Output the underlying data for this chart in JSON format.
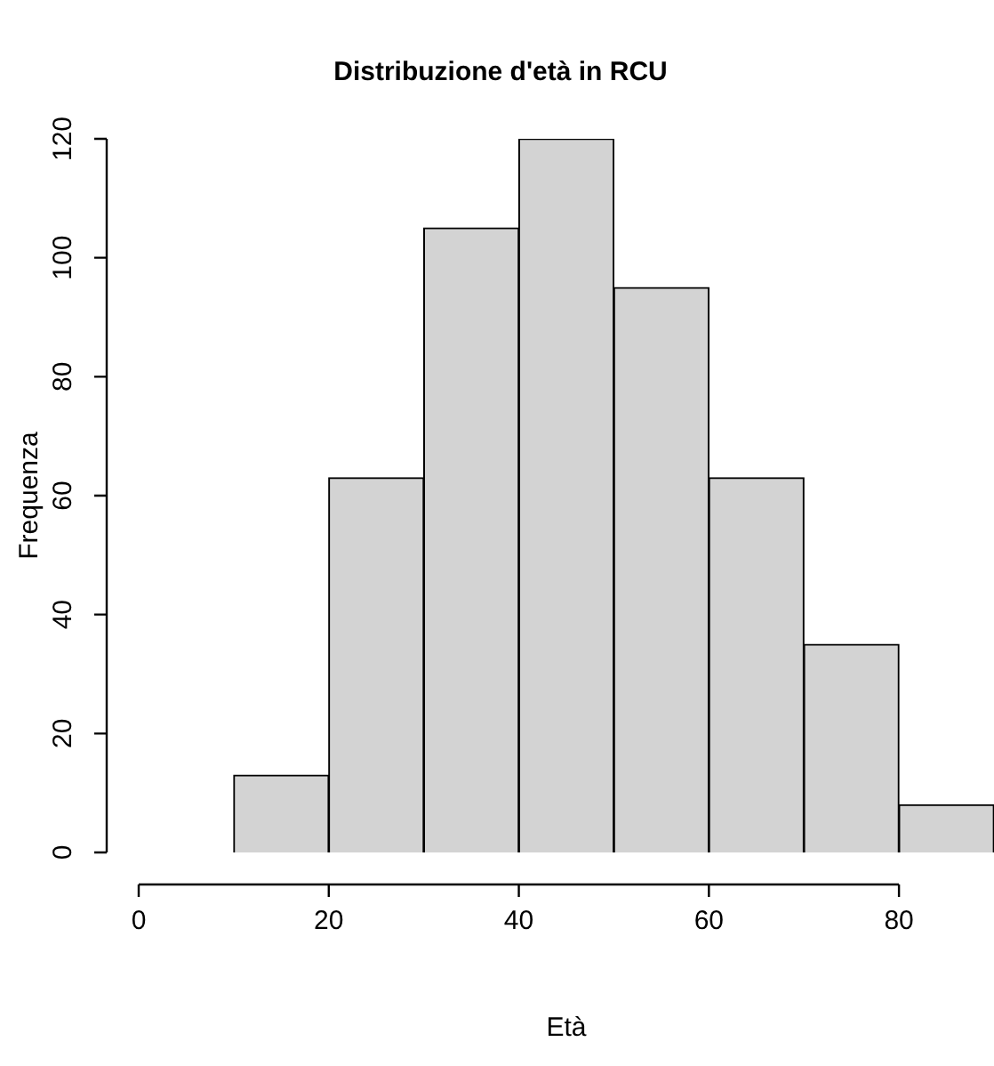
{
  "chart_data": {
    "type": "histogram",
    "title": "Distribuzione d'età in RCU",
    "xlabel": "Età",
    "ylabel": "Frequenza",
    "bins": [
      10,
      20,
      30,
      40,
      50,
      60,
      70,
      80,
      90
    ],
    "values": [
      13,
      63,
      105,
      120,
      95,
      63,
      35,
      8
    ],
    "color": "#d3d3d3",
    "xlim": [
      0,
      90
    ],
    "xticks": [
      0,
      20,
      40,
      60,
      80
    ],
    "ylim": [
      0,
      120
    ],
    "yticks": [
      0,
      20,
      40,
      60,
      80,
      100,
      120
    ],
    "grid": false,
    "legend": false
  }
}
